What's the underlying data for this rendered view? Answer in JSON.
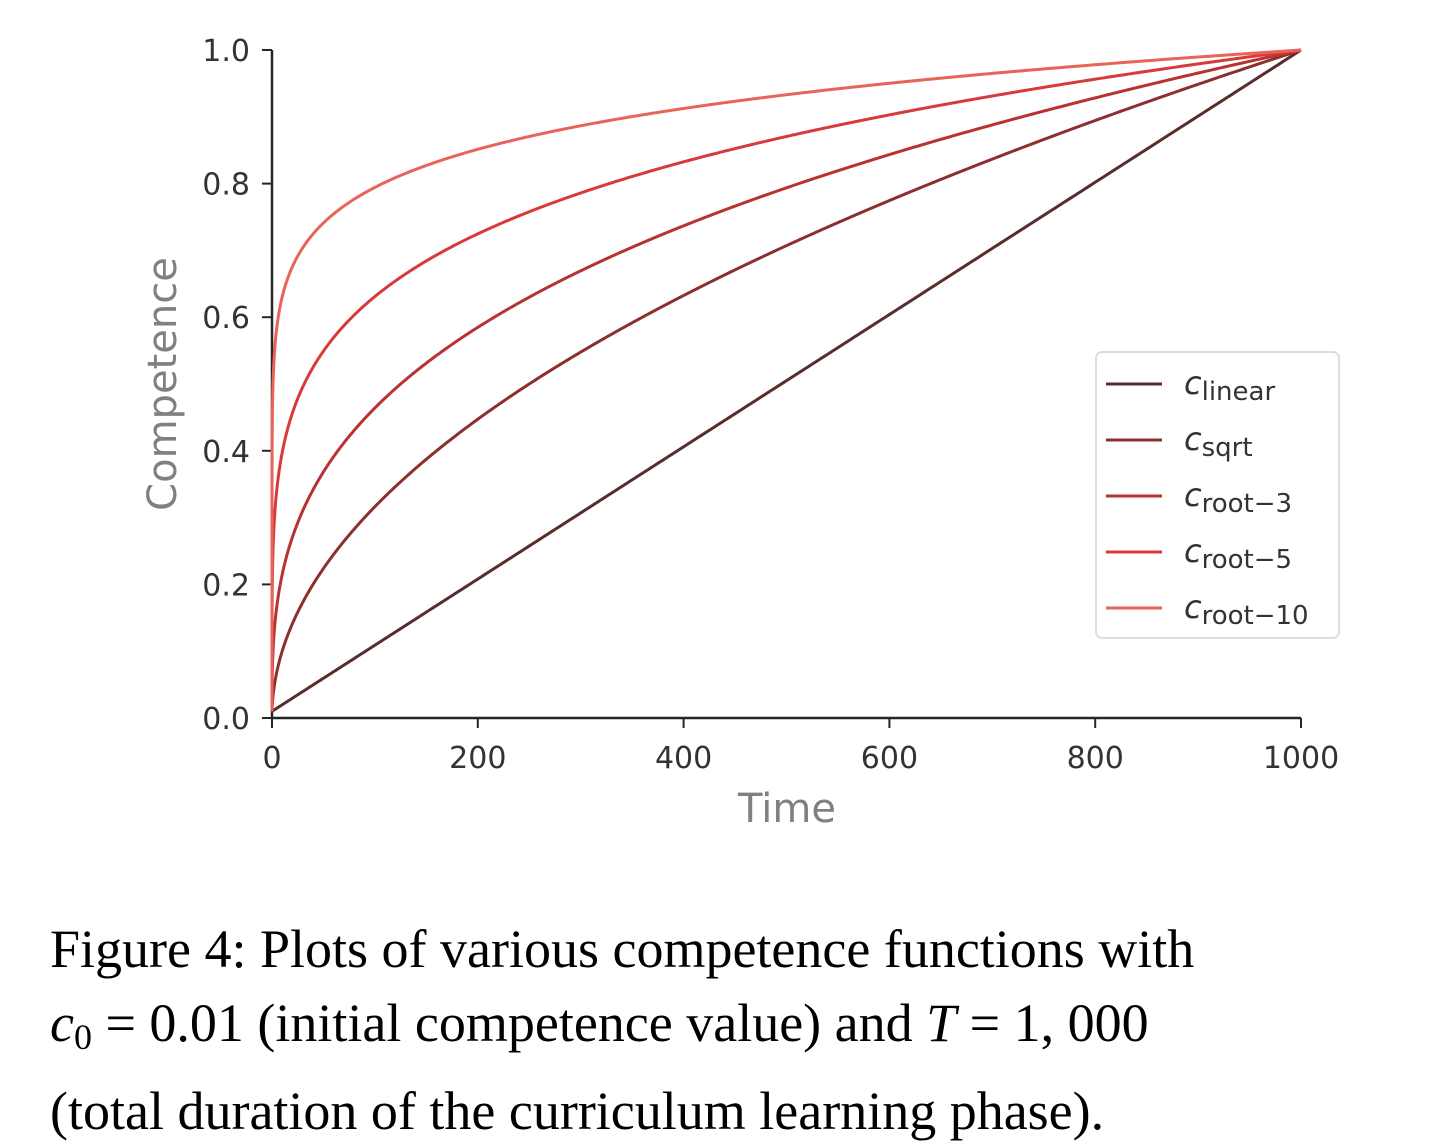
{
  "chart_data": {
    "type": "line",
    "xlabel": "Time",
    "ylabel": "Competence",
    "xlim": [
      0,
      1000
    ],
    "ylim": [
      0,
      1.0
    ],
    "x_ticks": [
      "0",
      "200",
      "400",
      "600",
      "800",
      "1000"
    ],
    "y_ticks": [
      "0.0",
      "0.2",
      "0.4",
      "0.6",
      "0.8",
      "1.0"
    ],
    "grid": false,
    "legend_position": "center-right",
    "c0": 0.01,
    "T": 1000,
    "series": [
      {
        "name": "c",
        "sub": "linear",
        "power": 1,
        "color": "#5a2c2c",
        "x": [
          0,
          100,
          200,
          300,
          400,
          500,
          600,
          700,
          800,
          900,
          1000
        ],
        "values": [
          0.01,
          0.109,
          0.208,
          0.307,
          0.406,
          0.505,
          0.604,
          0.703,
          0.802,
          0.901,
          1.0
        ]
      },
      {
        "name": "c",
        "sub": "sqrt",
        "power": 2,
        "color": "#8c2f2f",
        "x": [
          0,
          100,
          200,
          300,
          400,
          500,
          600,
          700,
          800,
          900,
          1000
        ],
        "values": [
          0.01,
          0.331,
          0.457,
          0.554,
          0.637,
          0.711,
          0.777,
          0.838,
          0.896,
          0.949,
          1.0
        ]
      },
      {
        "name": "c",
        "sub": "root−3",
        "power": 3,
        "color": "#b83232",
        "x": [
          0,
          100,
          200,
          300,
          400,
          500,
          600,
          700,
          800,
          900,
          1000
        ],
        "values": [
          0.01,
          0.479,
          0.592,
          0.673,
          0.738,
          0.794,
          0.843,
          0.888,
          0.928,
          0.965,
          1.0
        ]
      },
      {
        "name": "c",
        "sub": "root−5",
        "power": 5,
        "color": "#d83a3a",
        "x": [
          0,
          100,
          200,
          300,
          400,
          500,
          600,
          700,
          800,
          900,
          1000
        ],
        "values": [
          0.01,
          0.644,
          0.735,
          0.79,
          0.833,
          0.871,
          0.903,
          0.931,
          0.956,
          0.979,
          1.0
        ]
      },
      {
        "name": "c",
        "sub": "root−10",
        "power": 10,
        "color": "#e86358",
        "x": [
          0,
          100,
          200,
          300,
          400,
          500,
          600,
          700,
          800,
          900,
          1000
        ],
        "values": [
          0.01,
          0.803,
          0.857,
          0.889,
          0.913,
          0.933,
          0.95,
          0.965,
          0.978,
          0.99,
          1.0
        ]
      }
    ]
  },
  "caption": {
    "line1": "Figure 4:  Plots of various competence functions with",
    "c": "c",
    "c_sub": "0",
    "eq1": " = 0.01 (initial competence value) and ",
    "T": "T",
    "eq2": " = 1, 000",
    "line3": "(total duration of the curriculum learning phase)."
  }
}
